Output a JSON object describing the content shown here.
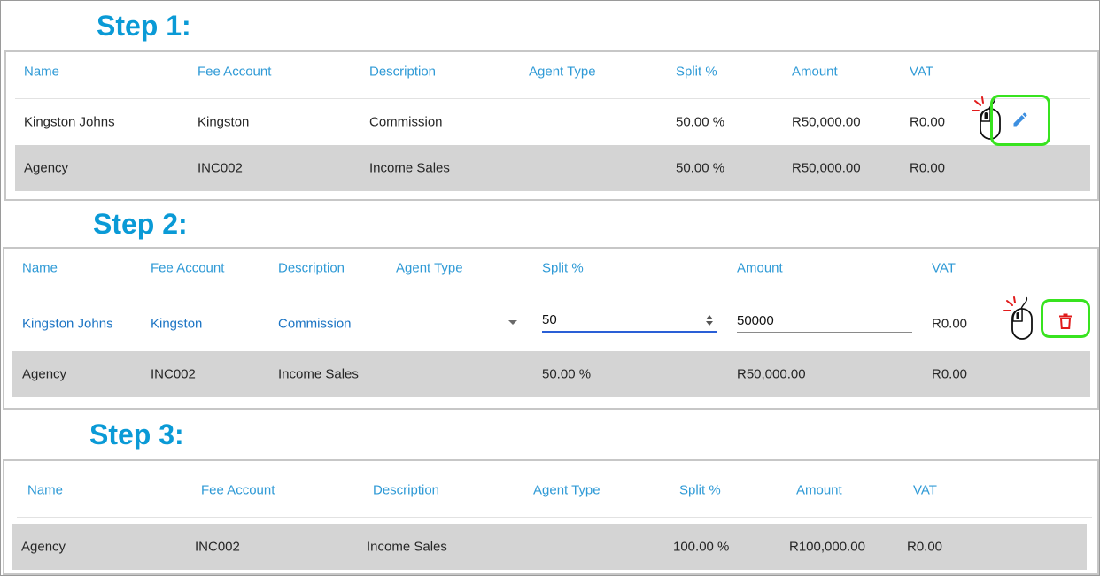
{
  "columns": [
    "Name",
    "Fee Account",
    "Description",
    "Agent Type",
    "Split %",
    "Amount",
    "VAT"
  ],
  "step1": {
    "title": "Step 1:",
    "row1": {
      "name": "Kingston Johns",
      "fee_account": "Kingston",
      "description": "Commission",
      "agent_type": "",
      "split": "50.00 %",
      "amount": "R50,000.00",
      "vat": "R0.00"
    },
    "row2": {
      "name": "Agency",
      "fee_account": "INC002",
      "description": "Income Sales",
      "agent_type": "",
      "split": "50.00 %",
      "amount": "R50,000.00",
      "vat": "R0.00"
    }
  },
  "step2": {
    "title": "Step 2:",
    "row1": {
      "name": "Kingston Johns",
      "fee_account": "Kingston",
      "description": "Commission",
      "agent_type": "",
      "split_input": "50",
      "amount_input": "50000",
      "vat": "R0.00"
    },
    "row2": {
      "name": "Agency",
      "fee_account": "INC002",
      "description": "Income Sales",
      "agent_type": "",
      "split": "50.00 %",
      "amount": "R50,000.00",
      "vat": "R0.00"
    }
  },
  "step3": {
    "title": "Step 3:",
    "row1": {
      "name": "Agency",
      "fee_account": "INC002",
      "description": "Income Sales",
      "agent_type": "",
      "split": "100.00 %",
      "amount": "R100,000.00",
      "vat": "R0.00"
    }
  },
  "colors": {
    "accent": "#0a9ad6",
    "header": "#2f9ad6",
    "highlight": "#38e31f",
    "delete": "#e11b1b",
    "edit": "#3d8fe0",
    "row_gray": "#d4d4d4"
  },
  "icons": [
    "mouse-click-icon",
    "edit-pencil-icon",
    "delete-trash-icon",
    "dropdown-arrow-icon",
    "spinner-arrows-icon"
  ]
}
